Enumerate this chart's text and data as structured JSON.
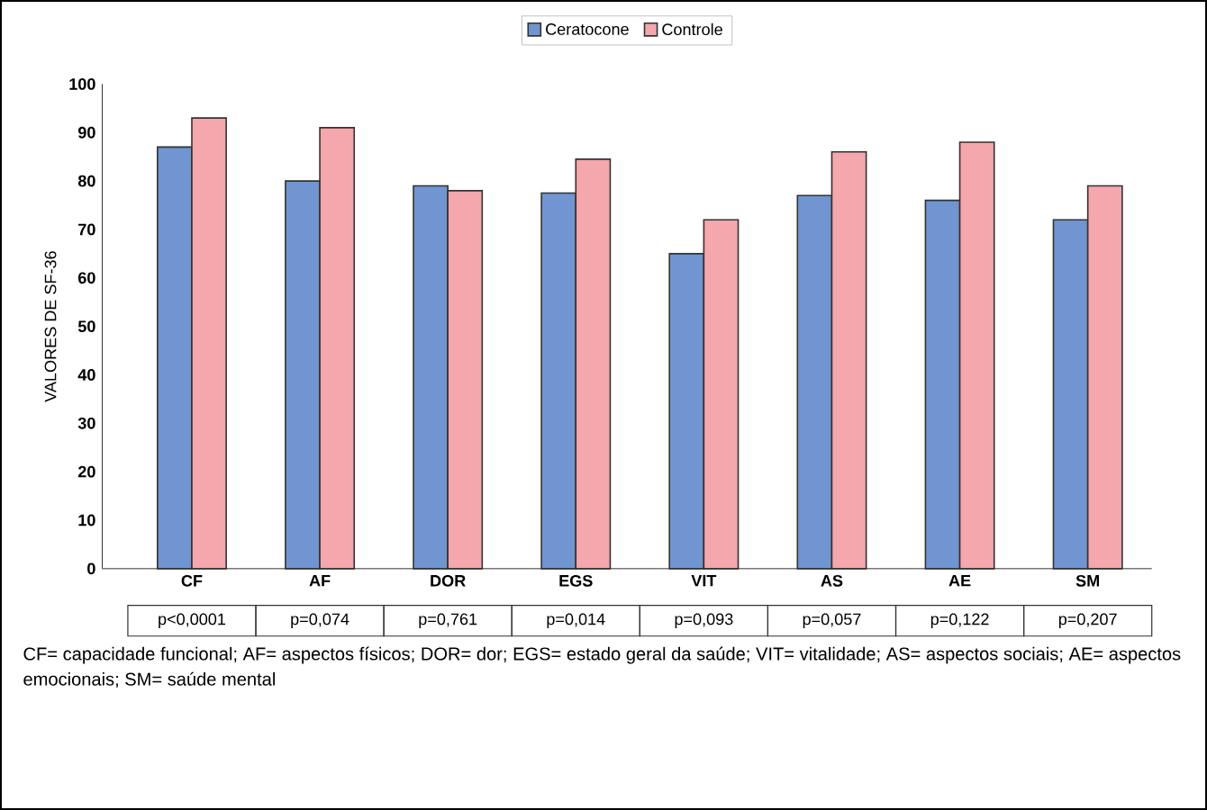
{
  "chart_data": {
    "type": "bar",
    "ylabel": "VALORES DE SF-36",
    "categories": [
      "CF",
      "AF",
      "DOR",
      "EGS",
      "VIT",
      "AS",
      "AE",
      "SM"
    ],
    "series": [
      {
        "name": "Ceratocone",
        "color": "#7095d0",
        "values": [
          87,
          80,
          79,
          77.5,
          65,
          77,
          76,
          72
        ]
      },
      {
        "name": "Controle",
        "color": "#f4a7ac",
        "values": [
          93,
          91,
          78,
          84.5,
          72,
          86,
          88,
          79
        ]
      }
    ],
    "ylim": [
      0,
      100
    ],
    "yticks": [
      0,
      10,
      20,
      30,
      40,
      50,
      60,
      70,
      80,
      90,
      100
    ],
    "legend": "top",
    "grid": false,
    "annotations": [
      "p<0,0001",
      "p=0,074",
      "p=0,761",
      "p=0,014",
      "p=0,093",
      "p=0,057",
      "p=0,122",
      "p=0,207",
      "CF= capacidade funcional; AF= aspectos físicos; DOR= dor; EGS= estado geral da saúde; VIT= vitalidade; AS= aspectos sociais; AE= aspectos emocionais; SM= saúde mental"
    ]
  }
}
